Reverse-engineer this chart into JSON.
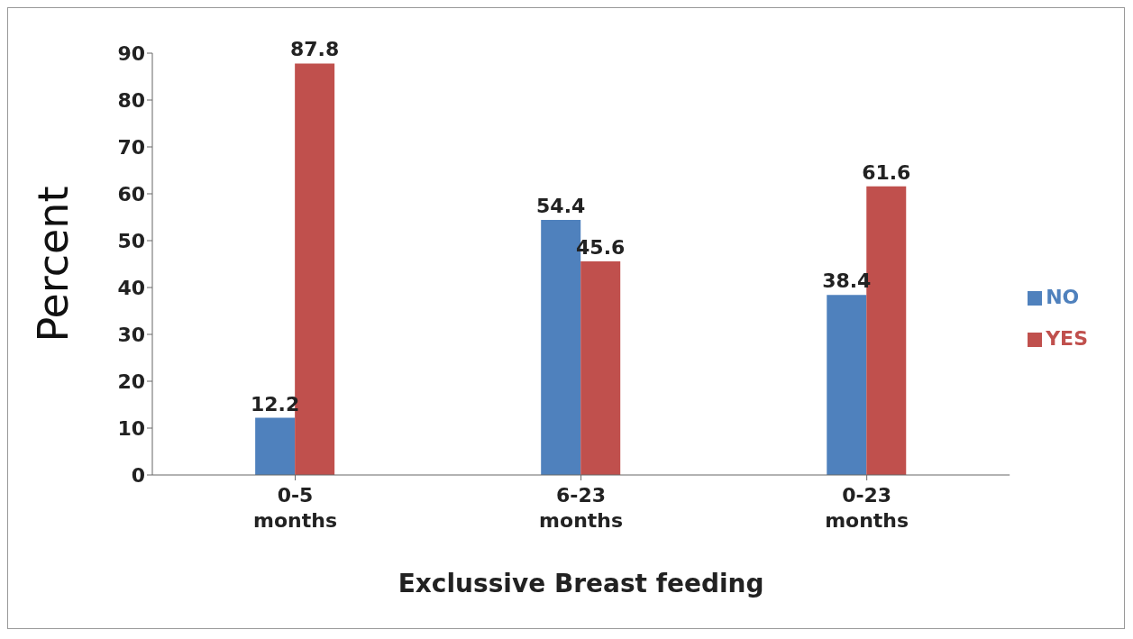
{
  "chart_data": {
    "type": "bar",
    "xlabel": "Exclussive Breast feeding",
    "ylabel": "Percent",
    "categories": [
      "0-5 months",
      "6-23 months",
      "0-23 months"
    ],
    "series": [
      {
        "name": "NO",
        "color": "#4f81bd",
        "values": [
          12.2,
          54.4,
          38.4
        ]
      },
      {
        "name": "YES",
        "color": "#c0504d",
        "values": [
          87.8,
          45.6,
          61.6
        ]
      }
    ],
    "ylim": [
      0,
      90
    ],
    "yticks": [
      0,
      10,
      20,
      30,
      40,
      50,
      60,
      70,
      80,
      90
    ],
    "grid": false,
    "legend": "right",
    "data_labels": true
  }
}
